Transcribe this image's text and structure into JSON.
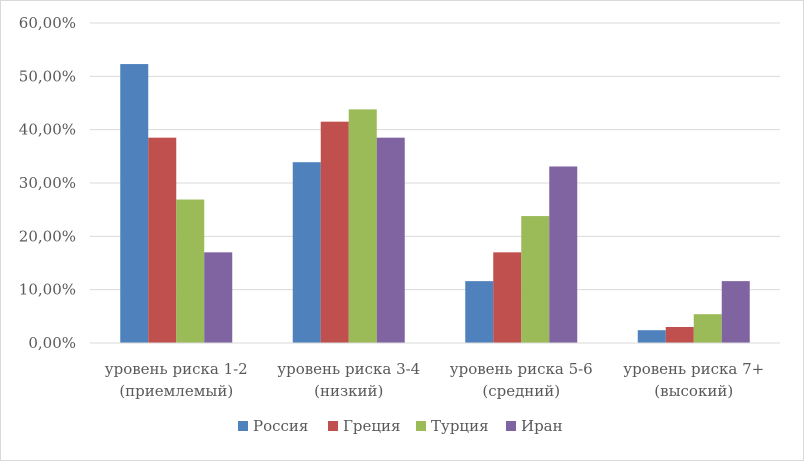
{
  "chart_data": {
    "type": "bar",
    "title": "",
    "xlabel": "",
    "ylabel": "",
    "categories": [
      [
        "уровень риска 1-2",
        "(приемлемый)"
      ],
      [
        "уровень риска 3-4",
        "(низкий)"
      ],
      [
        "уровень риска 5-6",
        "(средний)"
      ],
      [
        "уровень риска 7+",
        "(высокий)"
      ]
    ],
    "series": [
      {
        "name": "Россия",
        "color": "#4f81bd",
        "values": [
          52.3,
          33.9,
          11.6,
          2.4
        ]
      },
      {
        "name": "Греция",
        "color": "#c0504d",
        "values": [
          38.5,
          41.5,
          17.0,
          3.0
        ]
      },
      {
        "name": "Турция",
        "color": "#9bbb59",
        "values": [
          26.9,
          43.8,
          23.8,
          5.4
        ]
      },
      {
        "name": "Иран",
        "color": "#8064a2",
        "values": [
          17.0,
          38.5,
          33.1,
          11.6
        ]
      }
    ],
    "ylim": [
      0,
      60
    ],
    "yticks": [
      "0,00%",
      "10,00%",
      "20,00%",
      "30,00%",
      "40,00%",
      "50,00%",
      "60,00%"
    ],
    "grid": true,
    "legend_position": "bottom"
  }
}
